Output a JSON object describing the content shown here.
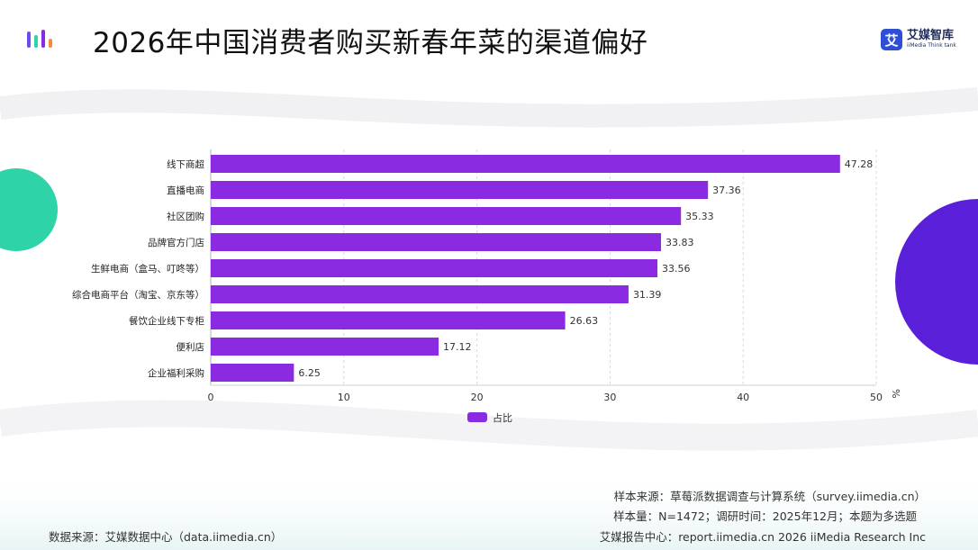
{
  "header": {
    "title": "2026年中国消费者购买新春年菜的渠道偏好",
    "brand_name": "艾媒智库",
    "brand_sub": "iiMedia Think tank",
    "brand_glyph": "艾"
  },
  "colors": {
    "bar": "#8a2be2",
    "accent_teal": "#2ed3a8",
    "accent_purple": "#5a1fd8"
  },
  "chart_data": {
    "type": "bar",
    "orientation": "horizontal",
    "categories": [
      "线下商超",
      "直播电商",
      "社区团购",
      "品牌官方门店",
      "生鲜电商（盒马、叮咚等）",
      "综合电商平台（淘宝、京东等）",
      "餐饮企业线下专柜",
      "便利店",
      "企业福利采购"
    ],
    "series": [
      {
        "name": "占比",
        "values": [
          47.28,
          37.36,
          35.33,
          33.83,
          33.56,
          31.39,
          26.63,
          17.12,
          6.25
        ]
      }
    ],
    "xlim": [
      0,
      50
    ],
    "xticks": [
      0,
      10,
      20,
      30,
      40,
      50
    ],
    "unit": "%",
    "grid": true,
    "legend": "bottom-center"
  },
  "footer": {
    "source_left": "数据来源：艾媒数据中心（data.iimedia.cn）",
    "sample_source": "样本来源：草莓派数据调查与计算系统（survey.iimedia.cn）",
    "sample_size": "样本量：N=1472；调研时间：2025年12月；本题为多选题",
    "report_center": "艾媒报告中心：report.iimedia.cn  2026 iiMedia Research Inc"
  }
}
